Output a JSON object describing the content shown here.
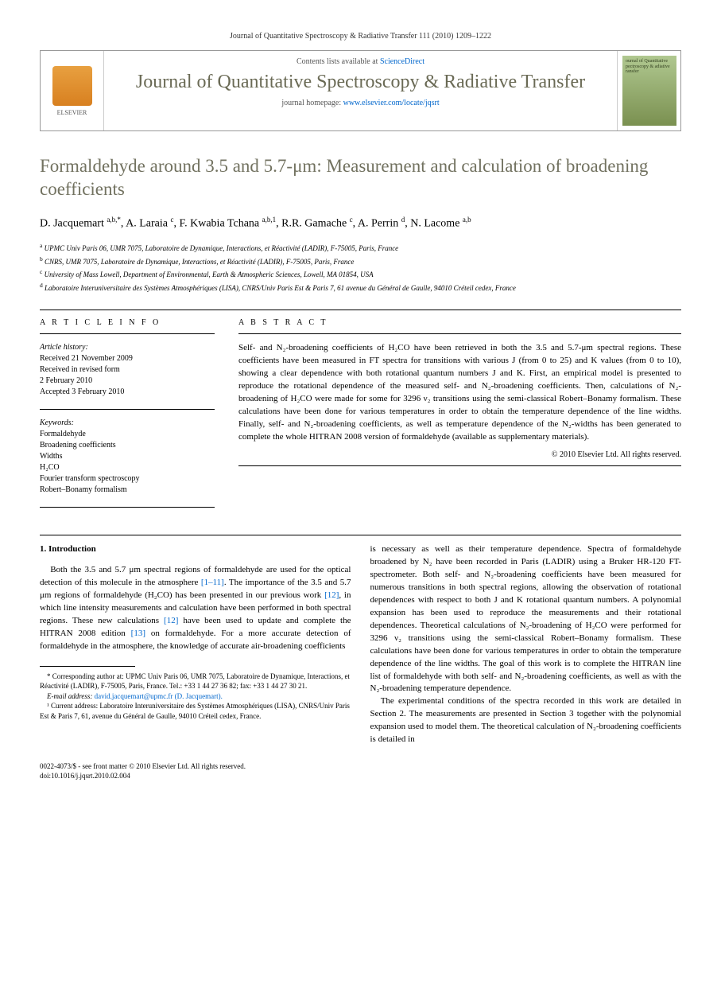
{
  "citation": "Journal of Quantitative Spectroscopy & Radiative Transfer 111 (2010) 1209–1222",
  "header": {
    "contents_prefix": "Contents lists available at ",
    "contents_link": "ScienceDirect",
    "journal_name": "Journal of Quantitative Spectroscopy & Radiative Transfer",
    "homepage_prefix": "journal homepage: ",
    "homepage_link": "www.elsevier.com/locate/jqsrt",
    "elsevier": "ELSEVIER",
    "cover_text": "ournal of Quantitative pectroscopy & adiative ransfer"
  },
  "title": "Formaldehyde around 3.5 and 5.7-μm: Measurement and calculation of broadening coefficients",
  "authors_html": "D. Jacquemart <sup>a,b,*</sup>, A. Laraia <sup>c</sup>, F. Kwabia Tchana <sup>a,b,1</sup>, R.R. Gamache <sup>c</sup>, A. Perrin <sup>d</sup>, N. Lacome <sup>a,b</sup>",
  "affiliations": {
    "a": "UPMC Univ Paris 06, UMR 7075, Laboratoire de Dynamique, Interactions, et Réactivité (LADIR), F-75005, Paris, France",
    "b": "CNRS, UMR 7075, Laboratoire de Dynamique, Interactions, et Réactivité (LADIR), F-75005, Paris, France",
    "c": "University of Mass Lowell, Department of Environmental, Earth & Atmospheric Sciences, Lowell, MA 01854, USA",
    "d": "Laboratoire Interuniversitaire des Systèmes Atmosphériques (LISA), CNRS/Univ Paris Est & Paris 7, 61 avenue du Général de Gaulle, 94010 Créteil cedex, France"
  },
  "article_info": {
    "heading": "A R T I C L E   I N F O",
    "history_label": "Article history:",
    "history": [
      "Received 21 November 2009",
      "Received in revised form",
      "2 February 2010",
      "Accepted 3 February 2010"
    ],
    "keywords_label": "Keywords:",
    "keywords": [
      "Formaldehyde",
      "Broadening coefficients",
      "Widths",
      "H₂CO",
      "Fourier transform spectroscopy",
      "Robert–Bonamy formalism"
    ]
  },
  "abstract": {
    "heading": "A B S T R A C T",
    "text": "Self- and N₂-broadening coefficients of H₂CO have been retrieved in both the 3.5 and 5.7-μm spectral regions. These coefficients have been measured in FT spectra for transitions with various J (from 0 to 25) and K values (from 0 to 10), showing a clear dependence with both rotational quantum numbers J and K. First, an empirical model is presented to reproduce the rotational dependence of the measured self- and N₂-broadening coefficients. Then, calculations of N₂-broadening of H₂CO were made for some for 3296 ν₂ transitions using the semi-classical Robert–Bonamy formalism. These calculations have been done for various temperatures in order to obtain the temperature dependence of the line widths. Finally, self- and N₂-broadening coefficients, as well as temperature dependence of the N₂-widths has been generated to complete the whole HITRAN 2008 version of formaldehyde (available as supplementary materials).",
    "copyright": "© 2010 Elsevier Ltd. All rights reserved."
  },
  "section1": {
    "heading": "1. Introduction",
    "p1_pre": "Both the 3.5 and 5.7 μm spectral regions of formaldehyde are used for the optical detection of this molecule in the atmosphere ",
    "p1_ref1": "[1–11]",
    "p1_mid1": ". The importance of the 3.5 and 5.7 μm regions of formaldehyde (H₂CO) has been presented in our previous work ",
    "p1_ref2": "[12]",
    "p1_mid2": ", in which line intensity measurements and calculation have been performed in both spectral regions. These new calculations ",
    "p1_ref3": "[12]",
    "p1_mid3": " have been used to update and complete the HITRAN 2008 edition ",
    "p1_ref4": "[13]",
    "p1_end": " on formaldehyde. For a more accurate detection of formaldehyde in the atmosphere, the knowledge of accurate air-broadening coefficients",
    "p2": "is necessary as well as their temperature dependence. Spectra of formaldehyde broadened by N₂ have been recorded in Paris (LADIR) using a Bruker HR-120 FT-spectrometer. Both self- and N₂-broadening coefficients have been measured for numerous transitions in both spectral regions, allowing the observation of rotational dependences with respect to both J and K rotational quantum numbers. A polynomial expansion has been used to reproduce the measurements and their rotational dependences. Theoretical calculations of N₂-broadening of H₂CO were performed for 3296 ν₂ transitions using the semi-classical Robert–Bonamy formalism. These calculations have been done for various temperatures in order to obtain the temperature dependence of the line widths. The goal of this work is to complete the HITRAN line list of formaldehyde with both self- and N₂-broadening coefficients, as well as with the N₂-broadening temperature dependence.",
    "p3": "The experimental conditions of the spectra recorded in this work are detailed in Section 2. The measurements are presented in Section 3 together with the polynomial expansion used to model them. The theoretical calculation of N₂-broadening coefficients is detailed in"
  },
  "footnotes": {
    "corr": "* Corresponding author at: UPMC Univ Paris 06, UMR 7075, Laboratoire de Dynamique, Interactions, et Réactivité (LADIR), F-75005, Paris, France. Tel.: +33 1 44 27 36 82; fax: +33 1 44 27 30 21.",
    "email_label": "E-mail address: ",
    "email": "david.jacquemart@upmc.fr (D. Jacquemart).",
    "note1": "¹ Current address: Laboratoire Interuniversitaire des Systèmes Atmosphériques (LISA), CNRS/Univ Paris Est & Paris 7, 61, avenue du Général de Gaulle, 94010 Créteil cedex, France."
  },
  "bottom": {
    "line1": "0022-4073/$ - see front matter © 2010 Elsevier Ltd. All rights reserved.",
    "line2": "doi:10.1016/j.jqsrt.2010.02.004"
  }
}
